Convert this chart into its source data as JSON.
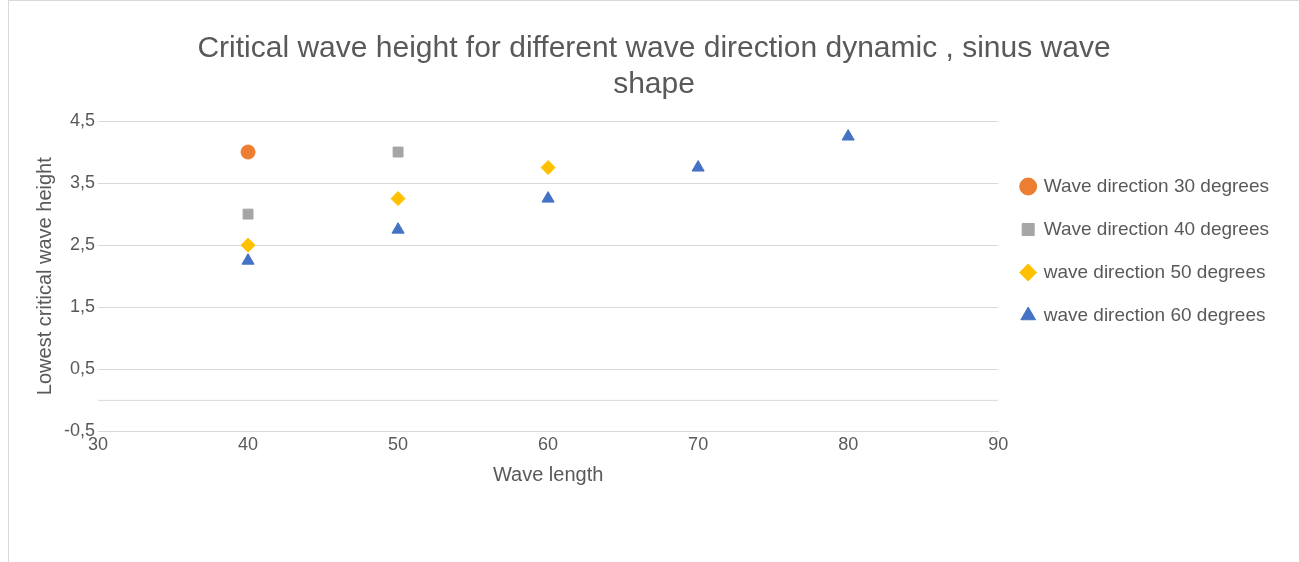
{
  "chart_data": {
    "type": "scatter",
    "title": "Critical wave height for different wave direction dynamic , sinus wave shape",
    "xlabel": "Wave length",
    "ylabel": "Lowest critical wave height",
    "xlim": [
      30,
      90
    ],
    "xticks": [
      30,
      40,
      50,
      60,
      70,
      80,
      90
    ],
    "ylim": [
      -0.5,
      4.5
    ],
    "yticks": [
      {
        "value": -0.5,
        "label": "-0,5"
      },
      {
        "value": 0.5,
        "label": "0,5"
      },
      {
        "value": 1.5,
        "label": "1,5"
      },
      {
        "value": 2.5,
        "label": "2,5"
      },
      {
        "value": 3.5,
        "label": "3,5"
      },
      {
        "value": 4.5,
        "label": "4,5"
      }
    ],
    "grid": "y",
    "legend": "right",
    "ref_lines": [
      {
        "axis": "y",
        "value": 0,
        "color": "#d9d9d9"
      }
    ],
    "series": [
      {
        "name": "Wave direction 30 degrees",
        "color": "#ed7d31",
        "marker": "circle",
        "x": [
          40
        ],
        "values": [
          4
        ]
      },
      {
        "name": "Wave direction 40 degrees",
        "color": "#a5a5a5",
        "marker": "square",
        "x": [
          40,
          50
        ],
        "values": [
          3,
          4
        ]
      },
      {
        "name": "wave direction 50 degrees",
        "color": "#ffc000",
        "marker": "diamond",
        "x": [
          40,
          50,
          60
        ],
        "values": [
          2.5,
          3.25,
          3.75
        ]
      },
      {
        "name": "wave direction 60 degrees",
        "color": "#4472c4",
        "marker": "triangle",
        "x": [
          40,
          50,
          60,
          70,
          80
        ],
        "values": [
          2.25,
          2.75,
          3.25,
          3.75,
          4.25
        ]
      }
    ]
  }
}
